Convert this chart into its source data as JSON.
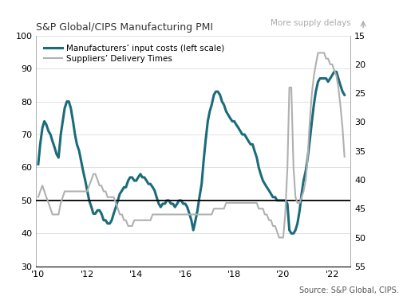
{
  "title": "S&P Global/CIPS Manufacturing PMI",
  "right_axis_label": "More supply delays",
  "source_text": "Source: S&P Global, CIPS.",
  "legend_labels": [
    "Manufacturers’ input costs (left scale)",
    "Suppliers’ Delivery Times"
  ],
  "teal_color": "#1b6b7b",
  "gray_color": "#b0b0b0",
  "left_ylim": [
    30,
    100
  ],
  "right_ylim": [
    55,
    15
  ],
  "hline_y": 50,
  "xticks": [
    2010,
    2012,
    2014,
    2016,
    2018,
    2020,
    2022
  ],
  "xticklabels": [
    "'10",
    "'12",
    "'14",
    "'16",
    "'18",
    "'20",
    "'22"
  ],
  "left_yticks": [
    30,
    40,
    50,
    60,
    70,
    80,
    90,
    100
  ],
  "right_yticks": [
    15,
    20,
    25,
    30,
    35,
    40,
    45,
    50,
    55
  ],
  "grid_color": "#dddddd",
  "input_costs_t": [
    2010.0,
    2010.08,
    2010.17,
    2010.25,
    2010.33,
    2010.42,
    2010.5,
    2010.58,
    2010.67,
    2010.75,
    2010.83,
    2010.92,
    2011.0,
    2011.08,
    2011.17,
    2011.25,
    2011.33,
    2011.42,
    2011.5,
    2011.58,
    2011.67,
    2011.75,
    2011.83,
    2011.92,
    2012.0,
    2012.08,
    2012.17,
    2012.25,
    2012.33,
    2012.42,
    2012.5,
    2012.58,
    2012.67,
    2012.75,
    2012.83,
    2012.92,
    2013.0,
    2013.08,
    2013.17,
    2013.25,
    2013.33,
    2013.42,
    2013.5,
    2013.58,
    2013.67,
    2013.75,
    2013.83,
    2013.92,
    2014.0,
    2014.08,
    2014.17,
    2014.25,
    2014.33,
    2014.42,
    2014.5,
    2014.58,
    2014.67,
    2014.75,
    2014.83,
    2014.92,
    2015.0,
    2015.08,
    2015.17,
    2015.25,
    2015.33,
    2015.42,
    2015.5,
    2015.58,
    2015.67,
    2015.75,
    2015.83,
    2015.92,
    2016.0,
    2016.08,
    2016.17,
    2016.25,
    2016.33,
    2016.42,
    2016.5,
    2016.58,
    2016.67,
    2016.75,
    2016.83,
    2016.92,
    2017.0,
    2017.08,
    2017.17,
    2017.25,
    2017.33,
    2017.42,
    2017.5,
    2017.58,
    2017.67,
    2017.75,
    2017.83,
    2017.92,
    2018.0,
    2018.08,
    2018.17,
    2018.25,
    2018.33,
    2018.42,
    2018.5,
    2018.58,
    2018.67,
    2018.75,
    2018.83,
    2018.92,
    2019.0,
    2019.08,
    2019.17,
    2019.25,
    2019.33,
    2019.42,
    2019.5,
    2019.58,
    2019.67,
    2019.75,
    2019.83,
    2019.92,
    2020.0,
    2020.08,
    2020.17,
    2020.25,
    2020.33,
    2020.42,
    2020.5,
    2020.58,
    2020.67,
    2020.75,
    2020.83,
    2020.92,
    2021.0,
    2021.08,
    2021.17,
    2021.25,
    2021.33,
    2021.42,
    2021.5,
    2021.58,
    2021.67,
    2021.75,
    2021.83,
    2021.92,
    2022.0,
    2022.08,
    2022.17,
    2022.25,
    2022.33,
    2022.42,
    2022.5
  ],
  "input_costs_v": [
    61,
    67,
    72,
    74,
    73,
    71,
    70,
    68,
    66,
    64,
    63,
    70,
    74,
    78,
    80,
    80,
    78,
    74,
    70,
    67,
    65,
    62,
    59,
    56,
    53,
    50,
    48,
    46,
    46,
    47,
    47,
    46,
    44,
    44,
    43,
    43,
    44,
    46,
    48,
    50,
    52,
    53,
    54,
    54,
    56,
    57,
    57,
    56,
    56,
    57,
    58,
    57,
    57,
    56,
    55,
    55,
    54,
    53,
    51,
    49,
    48,
    49,
    49,
    50,
    50,
    49,
    49,
    48,
    49,
    50,
    50,
    49,
    49,
    48,
    46,
    44,
    41,
    44,
    47,
    51,
    55,
    62,
    68,
    74,
    77,
    79,
    82,
    83,
    83,
    82,
    80,
    79,
    77,
    76,
    75,
    74,
    74,
    73,
    72,
    71,
    70,
    70,
    69,
    68,
    67,
    67,
    65,
    63,
    60,
    58,
    56,
    55,
    54,
    53,
    52,
    51,
    51,
    50,
    50,
    50,
    50,
    50,
    49,
    41,
    40,
    40,
    41,
    43,
    47,
    52,
    56,
    59,
    63,
    68,
    74,
    79,
    83,
    86,
    87,
    87,
    87,
    87,
    86,
    87,
    88,
    89,
    89,
    87,
    85,
    83,
    82
  ],
  "delivery_times_t": [
    2010.0,
    2010.08,
    2010.17,
    2010.25,
    2010.33,
    2010.42,
    2010.5,
    2010.58,
    2010.67,
    2010.75,
    2010.83,
    2010.92,
    2011.0,
    2011.08,
    2011.17,
    2011.25,
    2011.33,
    2011.42,
    2011.5,
    2011.58,
    2011.67,
    2011.75,
    2011.83,
    2011.92,
    2012.0,
    2012.08,
    2012.17,
    2012.25,
    2012.33,
    2012.42,
    2012.5,
    2012.58,
    2012.67,
    2012.75,
    2012.83,
    2012.92,
    2013.0,
    2013.08,
    2013.17,
    2013.25,
    2013.33,
    2013.42,
    2013.5,
    2013.58,
    2013.67,
    2013.75,
    2013.83,
    2013.92,
    2014.0,
    2014.08,
    2014.17,
    2014.25,
    2014.33,
    2014.42,
    2014.5,
    2014.58,
    2014.67,
    2014.75,
    2014.83,
    2014.92,
    2015.0,
    2015.08,
    2015.17,
    2015.25,
    2015.33,
    2015.42,
    2015.5,
    2015.58,
    2015.67,
    2015.75,
    2015.83,
    2015.92,
    2016.0,
    2016.08,
    2016.17,
    2016.25,
    2016.33,
    2016.42,
    2016.5,
    2016.58,
    2016.67,
    2016.75,
    2016.83,
    2016.92,
    2017.0,
    2017.08,
    2017.17,
    2017.25,
    2017.33,
    2017.42,
    2017.5,
    2017.58,
    2017.67,
    2017.75,
    2017.83,
    2017.92,
    2018.0,
    2018.08,
    2018.17,
    2018.25,
    2018.33,
    2018.42,
    2018.5,
    2018.58,
    2018.67,
    2018.75,
    2018.83,
    2018.92,
    2019.0,
    2019.08,
    2019.17,
    2019.25,
    2019.33,
    2019.42,
    2019.5,
    2019.58,
    2019.67,
    2019.75,
    2019.83,
    2019.92,
    2020.0,
    2020.08,
    2020.17,
    2020.25,
    2020.33,
    2020.42,
    2020.5,
    2020.58,
    2020.67,
    2020.75,
    2020.83,
    2020.92,
    2021.0,
    2021.08,
    2021.17,
    2021.25,
    2021.33,
    2021.42,
    2021.5,
    2021.58,
    2021.67,
    2021.75,
    2021.83,
    2021.92,
    2022.0,
    2022.08,
    2022.17,
    2022.25,
    2022.33,
    2022.42,
    2022.5
  ],
  "delivery_times_v": [
    43,
    42,
    41,
    42,
    43,
    44,
    45,
    46,
    46,
    46,
    46,
    44,
    43,
    42,
    42,
    42,
    42,
    42,
    42,
    42,
    42,
    42,
    42,
    42,
    42,
    41,
    40,
    39,
    39,
    40,
    41,
    41,
    42,
    42,
    43,
    43,
    43,
    43,
    44,
    45,
    46,
    46,
    47,
    47,
    48,
    48,
    48,
    47,
    47,
    47,
    47,
    47,
    47,
    47,
    47,
    47,
    46,
    46,
    46,
    46,
    46,
    46,
    46,
    46,
    46,
    46,
    46,
    46,
    46,
    46,
    46,
    46,
    46,
    46,
    46,
    46,
    46,
    46,
    46,
    46,
    46,
    46,
    46,
    46,
    46,
    46,
    45,
    45,
    45,
    45,
    45,
    45,
    44,
    44,
    44,
    44,
    44,
    44,
    44,
    44,
    44,
    44,
    44,
    44,
    44,
    44,
    44,
    44,
    45,
    45,
    45,
    46,
    46,
    47,
    47,
    48,
    48,
    49,
    50,
    50,
    50,
    46,
    38,
    24,
    24,
    38,
    43,
    44,
    44,
    43,
    42,
    40,
    36,
    30,
    25,
    22,
    20,
    18,
    18,
    18,
    18,
    19,
    19,
    20,
    20,
    21,
    22,
    24,
    27,
    31,
    36
  ]
}
